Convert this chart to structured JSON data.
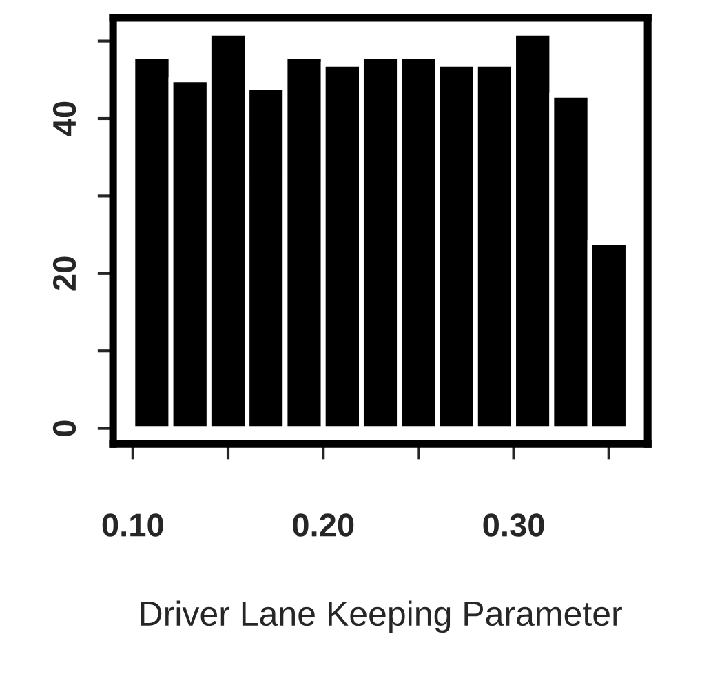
{
  "chart_data": {
    "type": "histogram",
    "xlabel": "Driver Lane Keeping Parameter",
    "bins": [
      0.1,
      0.12,
      0.14,
      0.16,
      0.18,
      0.2,
      0.22,
      0.24,
      0.26,
      0.28,
      0.3,
      0.32,
      0.34,
      0.36
    ],
    "values": [
      48,
      45,
      51,
      44,
      48,
      47,
      48,
      48,
      47,
      47,
      51,
      43,
      24
    ],
    "color": "#000000",
    "xlim": [
      0.0896,
      0.3704
    ],
    "ylim": [
      -2,
      53
    ],
    "xticks": [
      {
        "value": 0.1,
        "label": "0.10"
      },
      {
        "value": 0.15,
        "label": null
      },
      {
        "value": 0.2,
        "label": "0.20"
      },
      {
        "value": 0.25,
        "label": null
      },
      {
        "value": 0.3,
        "label": "0.30"
      },
      {
        "value": 0.35,
        "label": null
      }
    ],
    "yticks": [
      0,
      {
        "value": 10,
        "label": null
      },
      20,
      {
        "value": 30,
        "label": null
      },
      40,
      {
        "value": 50,
        "label": null
      }
    ],
    "grid": false,
    "legend": false
  }
}
